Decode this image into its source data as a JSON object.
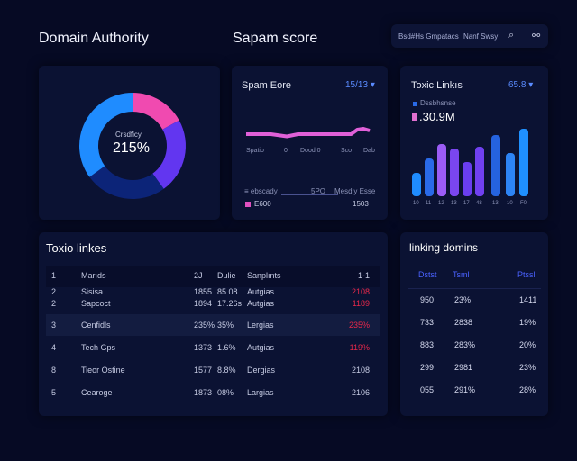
{
  "header": {
    "title_left": "Domain Authority",
    "title_mid": "Sapam score",
    "search_label": "Bsd#Hs Gmpatacs",
    "filter_label": "Nanf Swsy",
    "icons": [
      "search-icon",
      "link-icon"
    ]
  },
  "donut": {
    "label": "Crsdficy",
    "value": "215%",
    "segments": [
      {
        "fraction": 0.17,
        "color": "#f04ab0"
      },
      {
        "fraction": 0.23,
        "color": "#6236f0"
      },
      {
        "fraction": 0.25,
        "color": "#0c2478"
      },
      {
        "fraction": 0.35,
        "color": "#1f8cff"
      }
    ]
  },
  "spam": {
    "title": "Spam Eore",
    "value": "15/13",
    "x_labels": [
      "Spatio",
      "0",
      "Dood 0",
      "Sco",
      "Dab"
    ],
    "line": [
      [
        0,
        149
      ],
      [
        0.2,
        149
      ],
      [
        0.33,
        151.5
      ],
      [
        0.42,
        149
      ],
      [
        0.85,
        149
      ],
      [
        0.9,
        144
      ],
      [
        0.95,
        143
      ],
      [
        1,
        145
      ]
    ],
    "legend_left": "≡ ebscady",
    "legend_mid": "5PO",
    "legend_right": "Mesdly Esse",
    "pink_label": "E600",
    "pink_value": "1503"
  },
  "toxic": {
    "title": "Toxic Linkıs",
    "value": "65.8",
    "legend": "Dssbhsnse",
    "big_value": ".30.9M",
    "bars": [
      {
        "v": 26,
        "c": "#1f8cff",
        "l": "10"
      },
      {
        "v": 42,
        "c": "#2a6ae8",
        "l": "11"
      },
      {
        "v": 58,
        "c": "#9b5cf5",
        "l": "12"
      },
      {
        "v": 53,
        "c": "#7a46f0",
        "l": "13"
      },
      {
        "v": 38,
        "c": "#6a3ef0",
        "l": "17"
      },
      {
        "v": 55,
        "c": "#7040f0",
        "l": "48"
      },
      {
        "v": 68,
        "c": "#2563e0",
        "l": "13"
      },
      {
        "v": 48,
        "c": "#2d84f5",
        "l": "10"
      },
      {
        "v": 75,
        "c": "#1f90ff",
        "l": "F0"
      }
    ]
  },
  "table": {
    "title": "Toxio linkes",
    "header": [
      "1",
      "Marıds",
      "2J",
      "Dulie",
      "Sanplınts",
      "1-1"
    ],
    "rows": [
      [
        "2",
        "Sisisa",
        "1855",
        "85.08",
        "Autgias",
        "2108",
        true
      ],
      [
        "2",
        "Sapcoct",
        "1894",
        "17.26s",
        "Autgias",
        "1189",
        true
      ],
      [
        "3",
        "Cenfidls",
        "235%",
        "35%",
        "Lergias",
        "235%",
        true
      ],
      [
        "4",
        "Tech Gps",
        "1373",
        "1.6%",
        "Autgias",
        "119%",
        true
      ],
      [
        "8",
        "Tieor Ostine",
        "1577",
        "8.8%",
        "Dergias",
        "2108",
        false
      ],
      [
        "5",
        "Cearoge",
        "1873",
        "08%",
        "Largias",
        "2106",
        false
      ]
    ]
  },
  "linking": {
    "title": "linking domins",
    "header": [
      "Dstst",
      "Tsml",
      "Ptssl"
    ],
    "rows": [
      [
        "950",
        "23%",
        "1411"
      ],
      [
        "733",
        "2838",
        "19%"
      ],
      [
        "883",
        "283%",
        "20%"
      ],
      [
        "299",
        "2981",
        "23%"
      ],
      [
        "055",
        "291%",
        "28%"
      ]
    ]
  }
}
